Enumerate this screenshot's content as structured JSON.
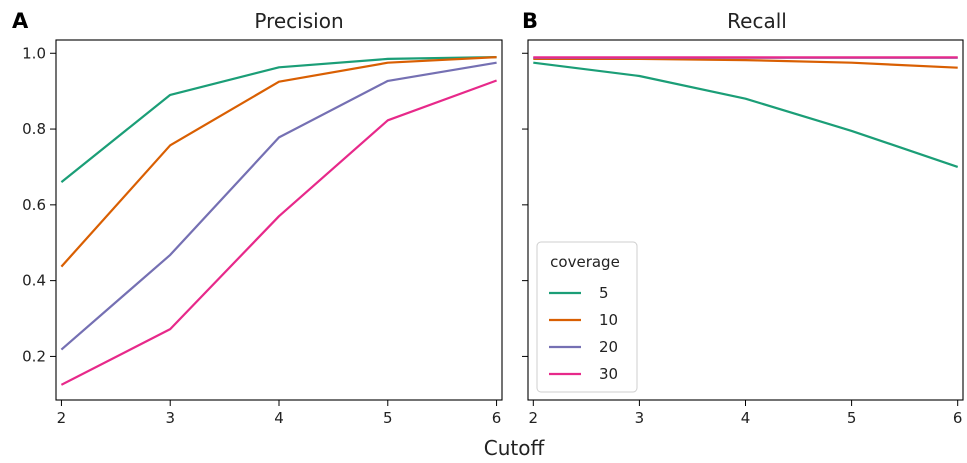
{
  "figure": {
    "xlabel": "Cutoff"
  },
  "colors": {
    "5": "#1b9e77",
    "10": "#d95f02",
    "20": "#7570b3",
    "30": "#e7298a"
  },
  "chart_data": [
    {
      "type": "line",
      "panel_label": "A",
      "title": "Precision",
      "xlabel": "",
      "ylabel": "",
      "x": [
        2,
        3,
        4,
        5,
        6
      ],
      "xlim": [
        1.95,
        6.05
      ],
      "ylim": [
        0.085,
        1.035
      ],
      "yticks": [
        "0.2",
        "0.4",
        "0.6",
        "0.8",
        "1.0"
      ],
      "xticks": [
        "2",
        "3",
        "4",
        "5",
        "6"
      ],
      "grid": false,
      "series": [
        {
          "name": "5",
          "values": [
            0.66,
            0.89,
            0.963,
            0.985,
            0.99
          ]
        },
        {
          "name": "10",
          "values": [
            0.437,
            0.757,
            0.925,
            0.975,
            0.99
          ]
        },
        {
          "name": "20",
          "values": [
            0.218,
            0.468,
            0.778,
            0.927,
            0.975
          ]
        },
        {
          "name": "30",
          "values": [
            0.125,
            0.272,
            0.57,
            0.823,
            0.928
          ]
        }
      ]
    },
    {
      "type": "line",
      "panel_label": "B",
      "title": "Recall",
      "xlabel": "",
      "ylabel": "",
      "x": [
        2,
        3,
        4,
        5,
        6
      ],
      "xlim": [
        1.95,
        6.05
      ],
      "ylim": [
        0.085,
        1.035
      ],
      "xticks": [
        "2",
        "3",
        "4",
        "5",
        "6"
      ],
      "grid": false,
      "legend": {
        "title": "coverage",
        "placement": "lower-left",
        "entries": [
          "5",
          "10",
          "20",
          "30"
        ]
      },
      "series": [
        {
          "name": "5",
          "values": [
            0.975,
            0.94,
            0.88,
            0.795,
            0.7
          ]
        },
        {
          "name": "10",
          "values": [
            0.985,
            0.985,
            0.982,
            0.975,
            0.962
          ]
        },
        {
          "name": "20",
          "values": [
            0.988,
            0.988,
            0.988,
            0.988,
            0.988
          ]
        },
        {
          "name": "30",
          "values": [
            0.989,
            0.989,
            0.989,
            0.989,
            0.989
          ]
        }
      ]
    }
  ]
}
